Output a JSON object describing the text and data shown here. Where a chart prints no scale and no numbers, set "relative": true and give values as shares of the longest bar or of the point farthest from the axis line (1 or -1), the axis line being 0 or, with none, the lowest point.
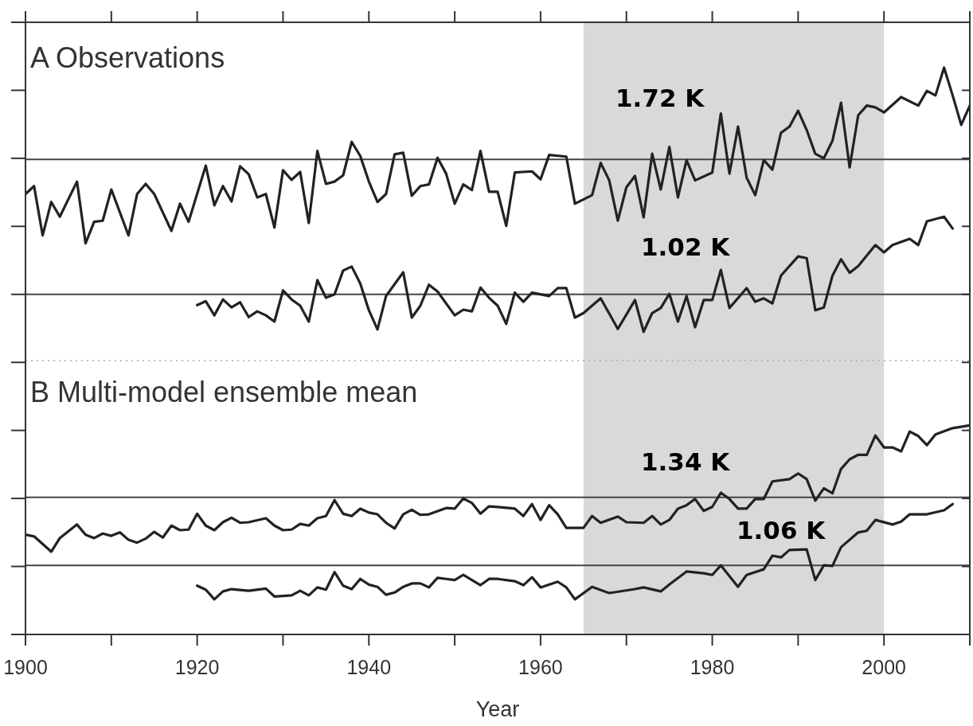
{
  "chart_data": {
    "type": "line",
    "relative": true,
    "xlabel": "Year",
    "xlim": [
      1900,
      2010
    ],
    "xticks": [
      1900,
      {
        "value": 1910,
        "label": null
      },
      1920,
      {
        "value": 1930,
        "label": null
      },
      1940,
      {
        "value": 1950,
        "label": null
      },
      1960,
      {
        "value": 1970,
        "label": null
      },
      1980,
      {
        "value": 1990,
        "label": null
      },
      2000,
      {
        "value": 2010,
        "label": null
      }
    ],
    "line_style": "solid",
    "grid": false,
    "bands": [
      {
        "axis": "x",
        "from": 1965,
        "to": 2000,
        "color": "#d9d9d9"
      }
    ],
    "ref_lines": [
      {
        "axis": "y",
        "value": 0.838,
        "color": "#444444",
        "line_style": "solid"
      },
      {
        "axis": "y",
        "value": 0.6,
        "color": "#444444",
        "line_style": "solid"
      },
      {
        "axis": "y",
        "value": 0.483,
        "color": "#aaaaaa",
        "line_style": "dotted"
      },
      {
        "axis": "y",
        "value": 0.242,
        "color": "#444444",
        "line_style": "solid"
      },
      {
        "axis": "y",
        "value": 0.122,
        "color": "#444444",
        "line_style": "solid"
      }
    ],
    "annotations": [
      "A  Observations",
      "B  Multi-model ensemble mean",
      "1.72 K",
      "1.02 K",
      "1.34 K",
      "1.06 K"
    ],
    "series": [
      {
        "color": "#222222",
        "x": [
          1900,
          1901,
          1902,
          1903,
          1904,
          1906,
          1907,
          1908,
          1909,
          1910,
          1912,
          1913,
          1914,
          1915,
          1917,
          1918,
          1919,
          1921,
          1922,
          1923,
          1924,
          1925,
          1926,
          1927,
          1928,
          1929,
          1930,
          1931,
          1932,
          1933,
          1934,
          1935,
          1936,
          1937,
          1938,
          1939,
          1940,
          1941,
          1942,
          1943,
          1944,
          1945,
          1946,
          1947,
          1948,
          1949,
          1950,
          1951,
          1952,
          1953,
          1954,
          1955,
          1956,
          1957,
          1959,
          1960,
          1961,
          1963,
          1964,
          1966,
          1967,
          1968,
          1969,
          1970,
          1971,
          1972,
          1973,
          1974,
          1975,
          1976,
          1977,
          1978,
          1980,
          1981,
          1982,
          1983,
          1984,
          1985,
          1986,
          1987,
          1988,
          1989,
          1990,
          1991,
          1992,
          1993,
          1994,
          1995,
          1996,
          1997,
          1998,
          1999,
          2000,
          2002,
          2004,
          2005,
          2006,
          2007,
          2008,
          2009,
          2010
        ],
        "values": [
          0.777,
          0.791,
          0.704,
          0.763,
          0.737,
          0.799,
          0.69,
          0.728,
          0.73,
          0.785,
          0.704,
          0.777,
          0.795,
          0.777,
          0.712,
          0.76,
          0.728,
          0.827,
          0.757,
          0.791,
          0.764,
          0.826,
          0.812,
          0.771,
          0.777,
          0.718,
          0.819,
          0.802,
          0.816,
          0.726,
          0.853,
          0.795,
          0.799,
          0.81,
          0.869,
          0.844,
          0.799,
          0.763,
          0.777,
          0.847,
          0.85,
          0.774,
          0.791,
          0.794,
          0.841,
          0.813,
          0.76,
          0.794,
          0.784,
          0.853,
          0.781,
          0.781,
          0.721,
          0.815,
          0.817,
          0.803,
          0.846,
          0.843,
          0.76,
          0.775,
          0.832,
          0.801,
          0.73,
          0.789,
          0.809,
          0.736,
          0.848,
          0.785,
          0.86,
          0.771,
          0.837,
          0.801,
          0.815,
          0.919,
          0.813,
          0.896,
          0.806,
          0.775,
          0.837,
          0.82,
          0.885,
          0.896,
          0.924,
          0.89,
          0.848,
          0.84,
          0.871,
          0.938,
          0.824,
          0.916,
          0.933,
          0.93,
          0.921,
          0.948,
          0.933,
          0.959,
          0.951,
          1.0,
          0.951,
          0.899,
          0.933
        ]
      },
      {
        "color": "#222222",
        "x": [
          1920,
          1921,
          1922,
          1923,
          1924,
          1925,
          1926,
          1927,
          1928,
          1929,
          1930,
          1931,
          1932,
          1933,
          1934,
          1935,
          1936,
          1937,
          1938,
          1939,
          1940,
          1941,
          1942,
          1944,
          1945,
          1946,
          1947,
          1948,
          1950,
          1951,
          1952,
          1953,
          1954,
          1955,
          1956,
          1957,
          1958,
          1959,
          1961,
          1962,
          1963,
          1964,
          1965,
          1967,
          1969,
          1971,
          1972,
          1973,
          1974,
          1975,
          1976,
          1977,
          1978,
          1979,
          1980,
          1981,
          1982,
          1984,
          1985,
          1986,
          1987,
          1988,
          1990,
          1991,
          1992,
          1993,
          1994,
          1995,
          1996,
          1997,
          1999,
          2000,
          2001,
          2003,
          2004,
          2005,
          2007,
          2008
        ],
        "values": [
          0.581,
          0.588,
          0.563,
          0.591,
          0.577,
          0.586,
          0.56,
          0.57,
          0.563,
          0.552,
          0.607,
          0.591,
          0.58,
          0.552,
          0.625,
          0.594,
          0.6,
          0.642,
          0.649,
          0.619,
          0.572,
          0.538,
          0.597,
          0.639,
          0.559,
          0.58,
          0.617,
          0.605,
          0.563,
          0.573,
          0.57,
          0.612,
          0.594,
          0.58,
          0.548,
          0.603,
          0.587,
          0.603,
          0.597,
          0.611,
          0.611,
          0.559,
          0.567,
          0.593,
          0.539,
          0.59,
          0.534,
          0.567,
          0.576,
          0.601,
          0.552,
          0.597,
          0.542,
          0.59,
          0.59,
          0.643,
          0.576,
          0.611,
          0.587,
          0.593,
          0.584,
          0.633,
          0.667,
          0.664,
          0.572,
          0.577,
          0.633,
          0.662,
          0.638,
          0.65,
          0.687,
          0.674,
          0.687,
          0.698,
          0.687,
          0.729,
          0.737,
          0.716
        ]
      },
      {
        "color": "#222222",
        "x": [
          1900,
          1901,
          1903,
          1904,
          1906,
          1907,
          1908,
          1909,
          1910,
          1911,
          1912,
          1913,
          1914,
          1915,
          1916,
          1917,
          1918,
          1919,
          1920,
          1921,
          1922,
          1923,
          1924,
          1925,
          1926,
          1928,
          1929,
          1930,
          1931,
          1932,
          1933,
          1934,
          1935,
          1936,
          1937,
          1938,
          1939,
          1940,
          1941,
          1942,
          1943,
          1944,
          1945,
          1946,
          1947,
          1949,
          1950,
          1951,
          1952,
          1953,
          1954,
          1955,
          1957,
          1958,
          1959,
          1960,
          1961,
          1962,
          1963,
          1965,
          1966,
          1967,
          1969,
          1970,
          1972,
          1973,
          1974,
          1975,
          1976,
          1977,
          1978,
          1979,
          1980,
          1981,
          1982,
          1983,
          1984,
          1985,
          1986,
          1987,
          1989,
          1990,
          1991,
          1992,
          1993,
          1994,
          1995,
          1996,
          1997,
          1998,
          1999,
          2000,
          2001,
          2002,
          2003,
          2004,
          2005,
          2006,
          2008,
          2010
        ],
        "values": [
          0.176,
          0.173,
          0.146,
          0.17,
          0.194,
          0.176,
          0.17,
          0.178,
          0.174,
          0.18,
          0.167,
          0.162,
          0.169,
          0.181,
          0.171,
          0.192,
          0.184,
          0.185,
          0.213,
          0.192,
          0.184,
          0.198,
          0.206,
          0.197,
          0.198,
          0.205,
          0.192,
          0.184,
          0.185,
          0.195,
          0.192,
          0.205,
          0.209,
          0.237,
          0.213,
          0.209,
          0.222,
          0.215,
          0.212,
          0.197,
          0.187,
          0.212,
          0.22,
          0.211,
          0.212,
          0.223,
          0.222,
          0.24,
          0.232,
          0.213,
          0.226,
          0.225,
          0.222,
          0.209,
          0.23,
          0.202,
          0.228,
          0.212,
          0.188,
          0.188,
          0.209,
          0.197,
          0.208,
          0.198,
          0.197,
          0.209,
          0.194,
          0.202,
          0.222,
          0.228,
          0.239,
          0.218,
          0.225,
          0.25,
          0.239,
          0.222,
          0.222,
          0.239,
          0.239,
          0.27,
          0.274,
          0.284,
          0.274,
          0.236,
          0.258,
          0.249,
          0.292,
          0.309,
          0.317,
          0.317,
          0.351,
          0.33,
          0.33,
          0.323,
          0.358,
          0.35,
          0.334,
          0.353,
          0.364,
          0.369
        ]
      },
      {
        "color": "#222222",
        "x": [
          1920,
          1921,
          1922,
          1923,
          1924,
          1926,
          1928,
          1929,
          1931,
          1932,
          1933,
          1934,
          1935,
          1936,
          1937,
          1938,
          1939,
          1940,
          1941,
          1942,
          1943,
          1944,
          1945,
          1946,
          1947,
          1948,
          1949,
          1950,
          1951,
          1952,
          1953,
          1954,
          1955,
          1957,
          1958,
          1959,
          1960,
          1962,
          1963,
          1964,
          1966,
          1968,
          1971,
          1972,
          1974,
          1975,
          1977,
          1979,
          1980,
          1981,
          1983,
          1984,
          1986,
          1987,
          1988,
          1989,
          1991,
          1992,
          1993,
          1994,
          1995,
          1997,
          1998,
          1999,
          2001,
          2002,
          2003,
          2005,
          2007,
          2008
        ],
        "values": [
          0.086,
          0.079,
          0.062,
          0.076,
          0.08,
          0.077,
          0.081,
          0.067,
          0.069,
          0.077,
          0.069,
          0.083,
          0.079,
          0.11,
          0.086,
          0.08,
          0.098,
          0.088,
          0.084,
          0.07,
          0.074,
          0.084,
          0.09,
          0.09,
          0.083,
          0.1,
          0.098,
          0.096,
          0.105,
          0.096,
          0.087,
          0.098,
          0.098,
          0.094,
          0.087,
          0.101,
          0.083,
          0.093,
          0.083,
          0.062,
          0.084,
          0.073,
          0.08,
          0.083,
          0.076,
          0.088,
          0.111,
          0.108,
          0.105,
          0.122,
          0.084,
          0.105,
          0.115,
          0.139,
          0.136,
          0.149,
          0.15,
          0.096,
          0.122,
          0.121,
          0.154,
          0.18,
          0.183,
          0.202,
          0.194,
          0.199,
          0.212,
          0.212,
          0.219,
          0.23
        ]
      }
    ]
  }
}
